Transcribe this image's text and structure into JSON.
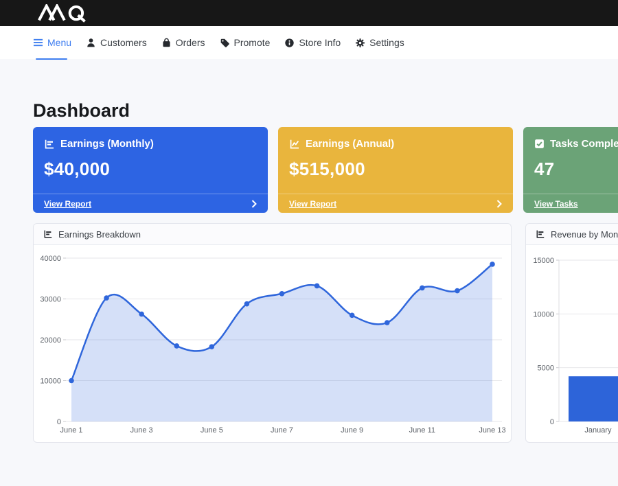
{
  "topbar": {
    "brand": "MQ logo mark",
    "bg": "#171717"
  },
  "nav": {
    "items": [
      {
        "label": "Menu",
        "icon": "hamburger-icon",
        "active": true
      },
      {
        "label": "Customers",
        "icon": "person-icon",
        "active": false
      },
      {
        "label": "Orders",
        "icon": "bag-icon",
        "active": false
      },
      {
        "label": "Promote",
        "icon": "tag-icon",
        "active": false
      },
      {
        "label": "Store Info",
        "icon": "info-icon",
        "active": false
      },
      {
        "label": "Settings",
        "icon": "gear-icon",
        "active": false
      }
    ],
    "active_color": "#3f7ef0"
  },
  "page": {
    "title": "Dashboard"
  },
  "stat_cards": [
    {
      "label": "Earnings (Monthly)",
      "value": "$40,000",
      "link": "View Report",
      "icon": "bar-chart-icon",
      "color": "#2d64e3"
    },
    {
      "label": "Earnings (Annual)",
      "value": "$515,000",
      "link": "View Report",
      "icon": "line-chart-icon",
      "color": "#e9b53d"
    },
    {
      "label": "Tasks Completed",
      "value": "47",
      "link": "View Tasks",
      "icon": "check-square-icon",
      "color": "#6ba377"
    }
  ],
  "chart_data": [
    {
      "type": "line",
      "title": "Earnings Breakdown",
      "x": [
        "June 1",
        "June 2",
        "June 3",
        "June 4",
        "June 5",
        "June 6",
        "June 7",
        "June 8",
        "June 9",
        "June 10",
        "June 11",
        "June 12",
        "June 13"
      ],
      "x_ticks_shown": [
        "June 1",
        "June 3",
        "June 5",
        "June 7",
        "June 9",
        "June 11",
        "June 13"
      ],
      "values": [
        10000,
        30250,
        26300,
        18500,
        18300,
        28800,
        31300,
        33200,
        26000,
        24200,
        32700,
        32000,
        38500
      ],
      "xlabel": "",
      "ylabel": "",
      "ylim": [
        0,
        40000
      ],
      "yticks": [
        0,
        10000,
        20000,
        30000,
        40000
      ],
      "grid": true,
      "legend": "none",
      "line_color": "#2f66db",
      "fill_color": "rgba(47,102,219,0.20)",
      "smooth": true
    },
    {
      "type": "bar",
      "title": "Revenue by Month",
      "categories": [
        "January"
      ],
      "values": [
        4200
      ],
      "xlabel": "",
      "ylabel": "",
      "ylim": [
        0,
        15000
      ],
      "yticks": [
        0,
        5000,
        10000,
        15000
      ],
      "grid": true,
      "legend": "none",
      "bar_color": "#2d64d9",
      "note": "card partially clipped by right viewport edge"
    }
  ]
}
